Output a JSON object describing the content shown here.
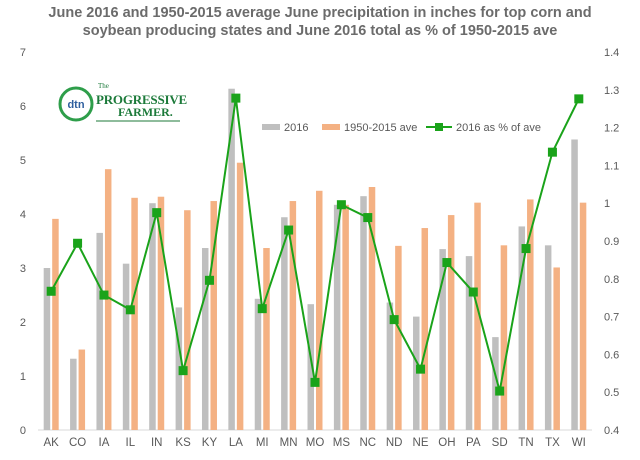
{
  "chart_data": {
    "type": "bar",
    "title_line1": "June 2016 and 1950-2015 average June precipitation in inches for top  corn and",
    "title_line2": "soybean producing states and June 2016 total as % of 1950-2015 ave",
    "categories": [
      "AK",
      "CO",
      "IA",
      "IL",
      "IN",
      "KS",
      "KY",
      "LA",
      "MI",
      "MN",
      "MO",
      "MS",
      "NC",
      "ND",
      "NE",
      "OH",
      "PA",
      "SD",
      "TN",
      "TX",
      "WI"
    ],
    "series": [
      {
        "name": "2016",
        "axis": "left",
        "color": "#bfbfbf",
        "values": [
          3.0,
          1.32,
          3.65,
          3.08,
          4.2,
          2.27,
          3.37,
          6.32,
          2.43,
          3.94,
          2.33,
          4.17,
          4.33,
          2.36,
          2.1,
          3.35,
          3.22,
          1.72,
          3.77,
          3.42,
          5.38
        ]
      },
      {
        "name": "1950-2015 ave",
        "axis": "left",
        "color": "#f4b183",
        "values": [
          3.91,
          1.49,
          4.83,
          4.3,
          4.32,
          4.07,
          4.24,
          4.95,
          3.37,
          4.24,
          4.43,
          4.17,
          4.5,
          3.41,
          3.74,
          3.98,
          4.21,
          3.42,
          4.27,
          3.01,
          4.21
        ]
      },
      {
        "name": "2016 as % of ave",
        "axis": "right",
        "type": "line",
        "color": "#1aa31a",
        "values": [
          0.767,
          0.894,
          0.757,
          0.718,
          0.975,
          0.557,
          0.796,
          1.278,
          0.721,
          0.929,
          0.526,
          0.996,
          0.962,
          0.692,
          0.561,
          0.843,
          0.765,
          0.503,
          0.88,
          1.135,
          1.276
        ]
      }
    ],
    "ylim_left": [
      0,
      7
    ],
    "yticks_left": [
      "0",
      "1",
      "2",
      "3",
      "4",
      "5",
      "6",
      "7"
    ],
    "ylim_right": [
      0.4,
      1.4
    ],
    "yticks_right": [
      "0.4",
      "0.5",
      "0.6",
      "0.7",
      "0.8",
      "0.9",
      "1",
      "1.1",
      "1.2",
      "1.3",
      "1.4"
    ],
    "legend_position": "top-right",
    "grid": false
  },
  "logo": {
    "badge": "dtn",
    "brand_small": "The",
    "brand_main": "PROGRESSIVE",
    "brand_sub": "FARMER."
  }
}
